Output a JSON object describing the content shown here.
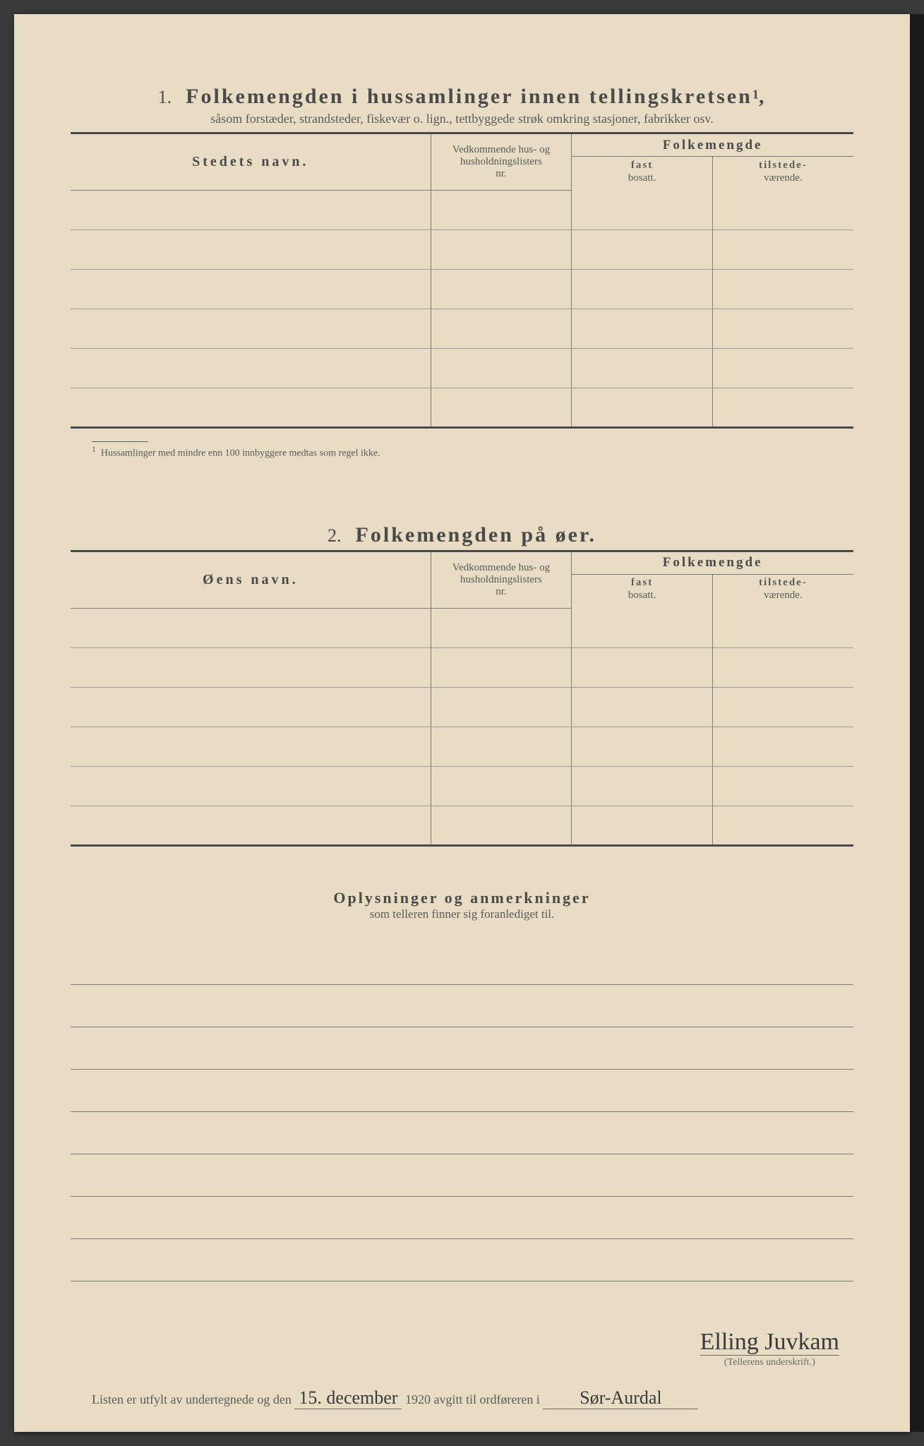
{
  "colors": {
    "paper": "#e8dcc4",
    "text_dark": "#4a4a4a",
    "text_mid": "#5a5a5a",
    "rule": "#7a7a7a",
    "rule_light": "#9a9a9a",
    "background": "#3a3a3a",
    "handwriting": "#3a3a3a"
  },
  "section1": {
    "number": "1.",
    "title": "Folkemengden i hussamlinger innen tellingskretsen",
    "superscript": "1",
    "subtitle": "såsom forstæder, strandsteder, fiskevær o. lign., tettbyggede strøk omkring stasjoner, fabrikker osv.",
    "col_name": "Stedets navn.",
    "col_nr_line1": "Vedkommende hus- og",
    "col_nr_line2": "husholdningslisters",
    "col_nr_line3": "nr.",
    "col_pop": "Folkemengde",
    "col_pop_fast1": "fast",
    "col_pop_fast2": "bosatt.",
    "col_pop_til1": "tilstede-",
    "col_pop_til2": "værende.",
    "row_count": 6,
    "footnote_marker": "1",
    "footnote_text": "Hussamlinger med mindre enn 100 innbyggere medtas som regel ikke."
  },
  "section2": {
    "number": "2.",
    "title": "Folkemengden på øer.",
    "col_name": "Øens navn.",
    "col_nr_line1": "Vedkommende hus- og",
    "col_nr_line2": "husholdningslisters",
    "col_nr_line3": "nr.",
    "col_pop": "Folkemengde",
    "col_pop_fast1": "fast",
    "col_pop_fast2": "bosatt.",
    "col_pop_til1": "tilstede-",
    "col_pop_til2": "værende.",
    "row_count": 6
  },
  "section3": {
    "title": "Oplysninger og anmerkninger",
    "subtitle": "som telleren finner sig foranlediget til.",
    "line_count": 8
  },
  "footer": {
    "text_before_date": "Listen er utfylt av undertegnede og den",
    "date_handwritten": "15. december",
    "year": "1920",
    "text_after_year": "avgitt til ordføreren i",
    "place_handwritten": "Sør-Aurdal",
    "signature": "Elling Juvkam",
    "signature_label": "(Tellerens underskrift.)"
  }
}
